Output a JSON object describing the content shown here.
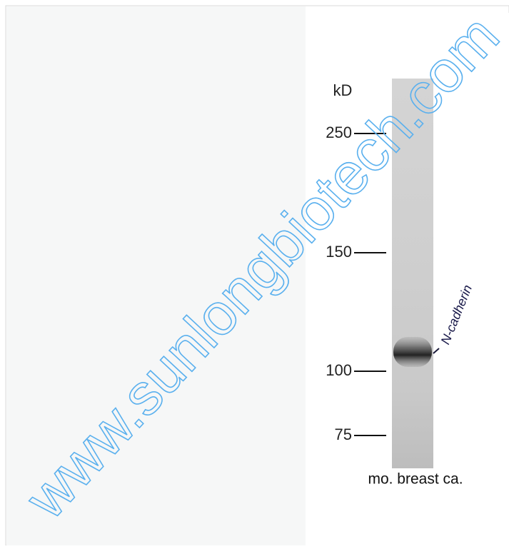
{
  "figure": {
    "unit_label": "kD",
    "markers": [
      "250",
      "150",
      "100",
      "75"
    ],
    "band_label": "N-cadherin",
    "lane_label": "mo. breast ca."
  },
  "watermark": "www.sunlongbiotech.com"
}
